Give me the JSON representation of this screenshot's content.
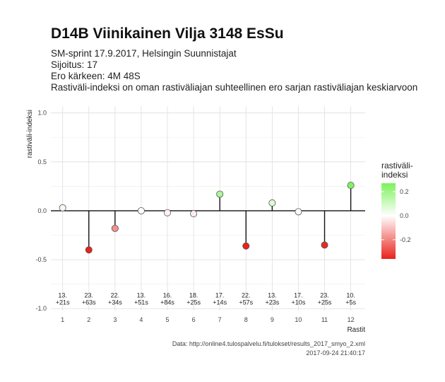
{
  "chart_data": {
    "type": "lollipop",
    "title": "D14B Viinikainen Vilja 3148 EsSu",
    "subtitle_lines": [
      "SM-sprint 17.9.2017, Helsingin Suunnistajat",
      "Sijoitus: 17",
      "Ero kärkeen: 4M 48S",
      "Rastiväli-indeksi on oman rastiväliajan suhteellinen ero sarjan rastiväliajan keskiarvoon"
    ],
    "xlabel": "Rastit",
    "ylabel": "rastiväli-indeksi",
    "xlim": [
      0.55,
      12.55
    ],
    "ylim": [
      -1.02,
      1.07
    ],
    "x_ticks": [
      1,
      2,
      3,
      4,
      5,
      6,
      7,
      8,
      9,
      10,
      11,
      12
    ],
    "y_ticks": [
      -1.0,
      -0.5,
      0.0,
      0.5,
      1.0
    ],
    "y_tick_labels": [
      "-1.0",
      "-0.5",
      "0.0",
      "0.5",
      "1.0"
    ],
    "x": [
      1,
      2,
      3,
      4,
      5,
      6,
      7,
      8,
      9,
      10,
      11,
      12
    ],
    "values": [
      0.03,
      -0.4,
      -0.18,
      0.0,
      -0.02,
      -0.03,
      0.17,
      -0.36,
      0.08,
      -0.01,
      -0.35,
      0.26
    ],
    "annotations": [
      [
        "13.",
        "+21s"
      ],
      [
        "23.",
        "+63s"
      ],
      [
        "22.",
        "+34s"
      ],
      [
        "13.",
        "+51s"
      ],
      [
        "16.",
        "+84s"
      ],
      [
        "18.",
        "+25s"
      ],
      [
        "17.",
        "+14s"
      ],
      [
        "22.",
        "+57s"
      ],
      [
        "13.",
        "+23s"
      ],
      [
        "17.",
        "+10s"
      ],
      [
        "23.",
        "+25s"
      ],
      [
        "10.",
        "+5s"
      ]
    ],
    "annotation_y": -0.915,
    "grid": true,
    "legend": {
      "title_lines": [
        "rastiväli-",
        "indeksi"
      ],
      "placement": "right",
      "range": [
        -0.36,
        0.27
      ],
      "ticks": [
        0.2,
        0.0,
        -0.2
      ],
      "tick_labels": [
        "0.2",
        "0.0",
        "-0.2"
      ],
      "color_low": "#e8231b",
      "color_mid": "#ffffff",
      "color_high": "#7cf25c"
    },
    "caption_lines": [
      "Data: http://online4.tulospalvelu.fi/tulokset/results_2017_smyo_2.xml",
      "2017-09-24 21:40:17"
    ]
  }
}
